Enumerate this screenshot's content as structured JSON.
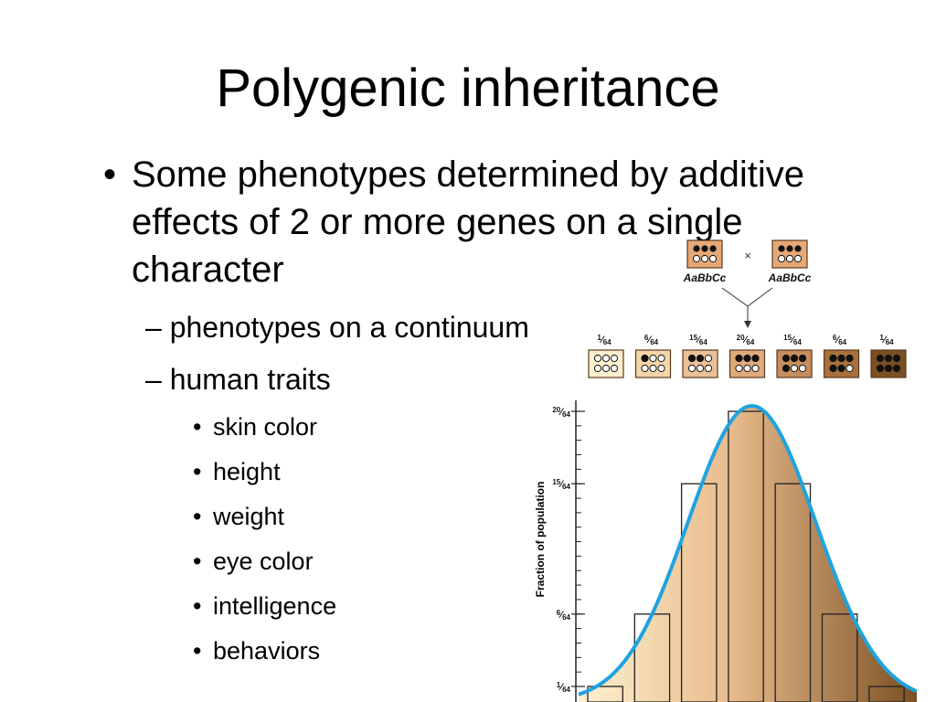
{
  "title": "Polygenic inheritance",
  "bullets": {
    "main": "Some phenotypes determined by additive effects of 2 or more genes on a single character",
    "sub": [
      "phenotypes on a continuum",
      "human traits"
    ],
    "traits": [
      "skin color",
      "height",
      "weight",
      "eye color",
      "intelligence",
      "behaviors"
    ]
  },
  "cross": {
    "parent1": "AaBbCc",
    "parent2": "AaBbCc",
    "symbol": "×"
  },
  "offspring": [
    {
      "label": "1/64",
      "dark_alleles": 0,
      "color": "#fdf1cf"
    },
    {
      "label": "6/64",
      "dark_alleles": 1,
      "color": "#f6d6a8"
    },
    {
      "label": "15/64",
      "dark_alleles": 2,
      "color": "#ecc196"
    },
    {
      "label": "20/64",
      "dark_alleles": 3,
      "color": "#dfa97a"
    },
    {
      "label": "15/64",
      "dark_alleles": 4,
      "color": "#c68d5e"
    },
    {
      "label": "6/64",
      "dark_alleles": 5,
      "color": "#a8703f"
    },
    {
      "label": "1/64",
      "dark_alleles": 6,
      "color": "#7a4f22"
    }
  ],
  "chart_data": {
    "type": "bar",
    "ylabel": "Fraction of population",
    "y_ticks": [
      "1/64",
      "6/64",
      "15/64",
      "20/64"
    ],
    "categories": [
      "0",
      "1",
      "2",
      "3",
      "4",
      "5",
      "6"
    ],
    "values": [
      1,
      6,
      15,
      20,
      15,
      6,
      1
    ],
    "ylim": [
      0,
      20
    ],
    "curve_color": "#1fa3e0",
    "gradient_colors": [
      "#fdf1cf",
      "#7a4f22"
    ]
  }
}
